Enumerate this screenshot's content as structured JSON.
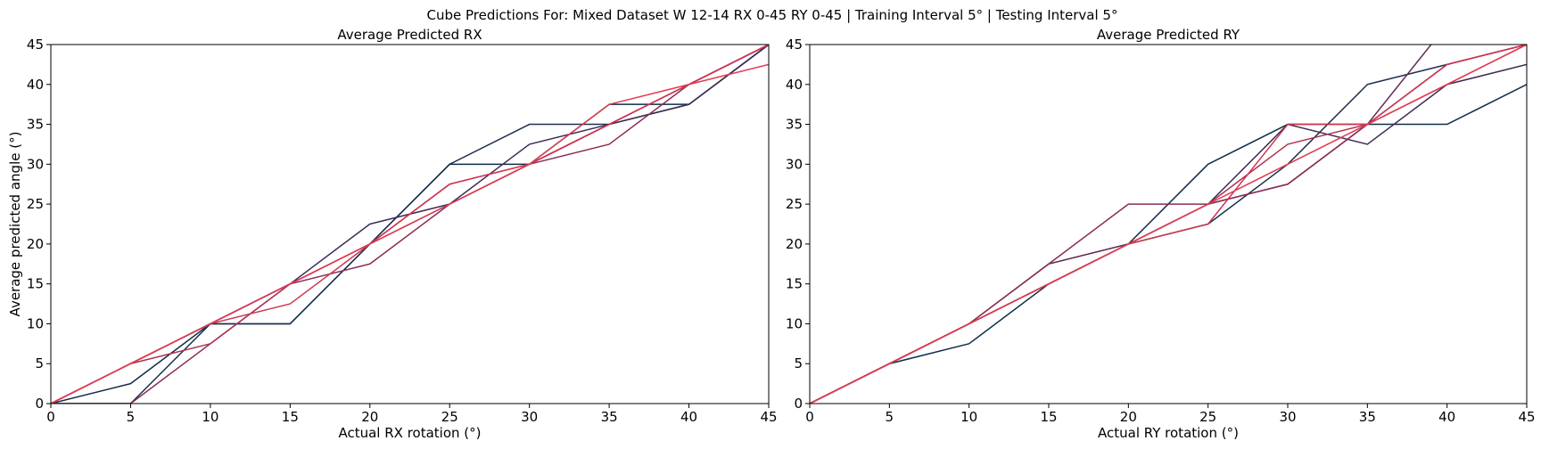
{
  "suptitle": "Cube Predictions For: Mixed Dataset W 12-14 RX 0-45 RY 0-45 | Training Interval 5° | Testing Interval 5°",
  "chart_data": [
    {
      "type": "line",
      "title": "Average Predicted RX",
      "xlabel": "Actual RX rotation (°)",
      "ylabel": "Average predicted angle (°)",
      "xlim": [
        0,
        45
      ],
      "ylim": [
        0,
        45
      ],
      "xticks": [
        0,
        5,
        10,
        15,
        20,
        25,
        30,
        35,
        40,
        45
      ],
      "yticks": [
        0,
        5,
        10,
        15,
        20,
        25,
        30,
        35,
        40,
        45
      ],
      "grid": false,
      "x": [
        0,
        5,
        10,
        15,
        20,
        25,
        30,
        35,
        40,
        45
      ],
      "series": [
        {
          "color": "#0f2d4a",
          "values": [
            0,
            2.5,
            10,
            10,
            20,
            30,
            30,
            37.5,
            37.5,
            45
          ]
        },
        {
          "color": "#1d3050",
          "values": [
            0,
            0,
            10,
            10,
            20,
            30,
            35,
            35,
            37.5,
            45
          ]
        },
        {
          "color": "#3b2b55",
          "values": [
            0,
            5,
            10,
            15,
            22.5,
            25,
            32.5,
            35,
            37.5,
            45
          ]
        },
        {
          "color": "#5d2b55",
          "values": [
            0,
            5,
            10,
            15,
            20,
            25,
            30,
            35,
            40,
            45
          ]
        },
        {
          "color": "#8a2c55",
          "values": [
            0,
            0,
            7.5,
            15,
            17.5,
            25,
            30,
            32.5,
            40,
            45
          ]
        },
        {
          "color": "#b02f52",
          "values": [
            0,
            5,
            7.5,
            15,
            20,
            27.5,
            30,
            35,
            40,
            45
          ]
        },
        {
          "color": "#d0344e",
          "values": [
            0,
            5,
            10,
            12.5,
            20,
            27.5,
            30,
            35,
            40,
            45
          ]
        },
        {
          "color": "#e23b4e",
          "values": [
            0,
            5,
            10,
            15,
            20,
            25,
            30,
            37.5,
            40,
            42.5
          ]
        }
      ]
    },
    {
      "type": "line",
      "title": "Average Predicted RY",
      "xlabel": "Actual RY rotation (°)",
      "ylabel": "",
      "xlim": [
        0,
        45
      ],
      "ylim": [
        0,
        45
      ],
      "xticks": [
        0,
        5,
        10,
        15,
        20,
        25,
        30,
        35,
        40,
        45
      ],
      "yticks": [
        0,
        5,
        10,
        15,
        20,
        25,
        30,
        35,
        40,
        45
      ],
      "grid": false,
      "x": [
        0,
        5,
        10,
        15,
        20,
        25,
        30,
        35,
        40,
        45
      ],
      "series": [
        {
          "color": "#0f2d4a",
          "values": [
            0,
            5,
            7.5,
            15,
            20,
            30,
            35,
            35,
            35,
            40
          ]
        },
        {
          "color": "#1d3050",
          "values": [
            0,
            5,
            10,
            15,
            20,
            22.5,
            30,
            40,
            42.5,
            45
          ]
        },
        {
          "color": "#3b2b55",
          "values": [
            0,
            5,
            10,
            15,
            20,
            25,
            35,
            32.5,
            40,
            42.5
          ]
        },
        {
          "color": "#5d2b55",
          "values": [
            0,
            5,
            10,
            17.5,
            20,
            25,
            27.5,
            35,
            47.5,
            50
          ]
        },
        {
          "color": "#8a2c55",
          "values": [
            0,
            5,
            10,
            17.5,
            25,
            25,
            27.5,
            35,
            42.5,
            45
          ]
        },
        {
          "color": "#b02f52",
          "values": [
            0,
            5,
            10,
            15,
            20,
            25,
            32.5,
            35,
            40,
            45
          ]
        },
        {
          "color": "#d0344e",
          "values": [
            0,
            5,
            10,
            15,
            20,
            22.5,
            35,
            35,
            42.5,
            45
          ]
        },
        {
          "color": "#e23b4e",
          "values": [
            0,
            5,
            10,
            15,
            20,
            25,
            30,
            35,
            40,
            45
          ]
        }
      ]
    }
  ]
}
